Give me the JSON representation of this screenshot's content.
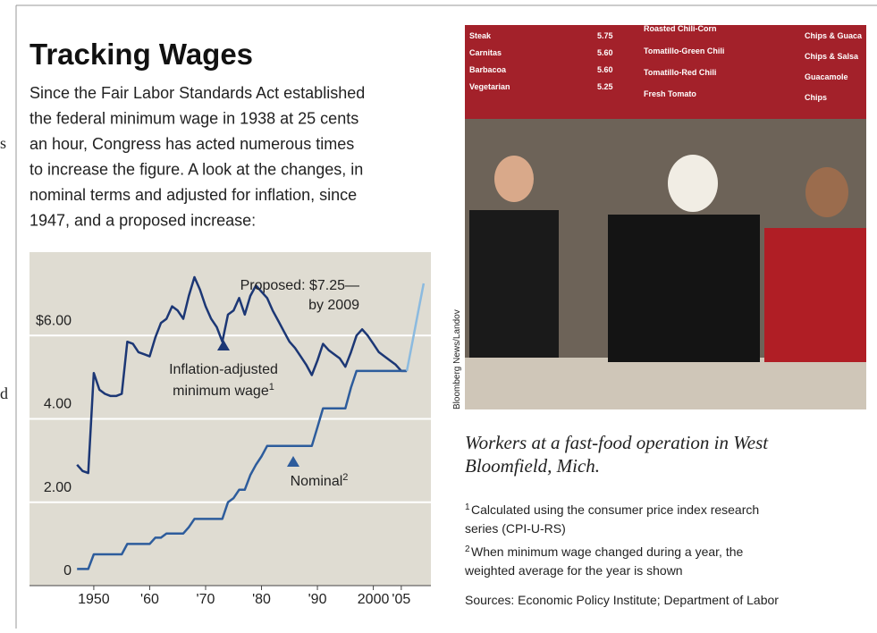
{
  "cropped_text": [
    "s",
    "d"
  ],
  "header": {
    "title": "Tracking Wages",
    "body": [
      "Since the Fair Labor Standards Act established",
      "the federal minimum wage in 1938 at 25 cents",
      "an hour, Congress has acted numerous times",
      "to increase the figure. A look at the changes, in",
      "nominal terms and adjusted for inflation, since",
      "1947, and a proposed increase:"
    ]
  },
  "chart_data": {
    "type": "line",
    "x": [
      1947,
      1948,
      1949,
      1950,
      1951,
      1952,
      1953,
      1954,
      1955,
      1956,
      1957,
      1958,
      1959,
      1960,
      1961,
      1962,
      1963,
      1964,
      1965,
      1966,
      1967,
      1968,
      1969,
      1970,
      1971,
      1972,
      1973,
      1974,
      1975,
      1976,
      1977,
      1978,
      1979,
      1980,
      1981,
      1982,
      1983,
      1984,
      1985,
      1986,
      1987,
      1988,
      1989,
      1990,
      1991,
      1992,
      1993,
      1994,
      1995,
      1996,
      1997,
      1998,
      1999,
      2000,
      2001,
      2002,
      2003,
      2004,
      2005,
      2006,
      2007,
      2008,
      2009
    ],
    "series": [
      {
        "color": "#1c3775",
        "values": [
          2.9,
          2.75,
          2.7,
          5.1,
          4.7,
          4.6,
          4.55,
          4.55,
          4.6,
          5.85,
          5.8,
          5.6,
          5.55,
          5.5,
          5.95,
          6.3,
          6.4,
          6.7,
          6.6,
          6.4,
          6.95,
          7.4,
          7.1,
          6.7,
          6.4,
          6.2,
          5.85,
          6.5,
          6.6,
          6.9,
          6.5,
          6.95,
          7.2,
          7.05,
          6.9,
          6.6,
          6.35,
          6.1,
          5.85,
          5.7,
          5.5,
          5.3,
          5.05,
          5.4,
          5.8,
          5.65,
          5.55,
          5.45,
          5.25,
          5.6,
          6.0,
          6.15,
          6.0,
          5.8,
          5.6,
          5.5,
          5.4,
          5.3,
          5.15,
          5.15,
          null,
          null,
          null
        ]
      },
      {
        "color": "#2d5c9c",
        "values": [
          0.4,
          0.4,
          0.4,
          0.75,
          0.75,
          0.75,
          0.75,
          0.75,
          0.75,
          1,
          1,
          1,
          1,
          1,
          1.15,
          1.15,
          1.25,
          1.25,
          1.25,
          1.25,
          1.4,
          1.6,
          1.6,
          1.6,
          1.6,
          1.6,
          1.6,
          2,
          2.1,
          2.3,
          2.3,
          2.65,
          2.9,
          3.1,
          3.35,
          3.35,
          3.35,
          3.35,
          3.35,
          3.35,
          3.35,
          3.35,
          3.35,
          3.8,
          4.25,
          4.25,
          4.25,
          4.25,
          4.25,
          4.75,
          5.15,
          5.15,
          5.15,
          5.15,
          5.15,
          5.15,
          5.15,
          5.15,
          5.15,
          5.15,
          null,
          null,
          null
        ]
      },
      {
        "color": "#8bbadf",
        "values": [
          null,
          null,
          null,
          null,
          null,
          null,
          null,
          null,
          null,
          null,
          null,
          null,
          null,
          null,
          null,
          null,
          null,
          null,
          null,
          null,
          null,
          null,
          null,
          null,
          null,
          null,
          null,
          null,
          null,
          null,
          null,
          null,
          null,
          null,
          null,
          null,
          null,
          null,
          null,
          null,
          null,
          null,
          null,
          null,
          null,
          null,
          null,
          null,
          null,
          null,
          null,
          null,
          null,
          null,
          null,
          null,
          null,
          null,
          null,
          5.15,
          5.85,
          6.55,
          7.25
        ]
      }
    ],
    "xlim": [
      1938.5,
      2010.3
    ],
    "ylim": [
      0,
      8
    ],
    "xticks": [
      {
        "value": 1950,
        "label": "1950"
      },
      {
        "value": 1960,
        "label": "'60"
      },
      {
        "value": 1970,
        "label": "'70"
      },
      {
        "value": 1980,
        "label": "'80"
      },
      {
        "value": 1990,
        "label": "'90"
      },
      {
        "value": 2000,
        "label": "2000"
      },
      {
        "value": 2005,
        "label": "'05"
      }
    ],
    "yticks": [
      0,
      {
        "value": 2,
        "label": "2.00"
      },
      {
        "value": 4,
        "label": "4.00"
      },
      {
        "value": 6,
        "label": "$6.00"
      }
    ],
    "grid": true,
    "background": "#dfdcd2",
    "annotations": [
      {
        "text": "Proposed: $7.25—"
      },
      {
        "text": "by 2009"
      },
      {
        "text": "Inflation-adjusted"
      },
      {
        "text": "minimum wage",
        "sup": "1"
      },
      {
        "text": "Nominal",
        "sup": "2"
      }
    ]
  },
  "photo": {
    "credit": "Bloomberg News/Landov",
    "menu": [
      "Steak",
      "5.75",
      "Carnitas",
      "5.60",
      "Barbacoa",
      "5.60",
      "Vegetarian",
      "5.25",
      "Roasted Chili-Corn",
      "Tomatillo-Green Chili",
      "Tomatillo-Red Chili",
      "Fresh Tomato",
      "Chips & Guaca",
      "Chips & Salsa",
      "Guacamole",
      "Chips"
    ]
  },
  "caption": [
    "Workers at a fast-food operation in West",
    "Bloomfield, Mich."
  ],
  "footnotes": [
    {
      "marker": "1",
      "lines": [
        "Calculated using the consumer price index research",
        "series (CPI-U-RS)"
      ]
    },
    {
      "marker": "2",
      "lines": [
        "When minimum wage changed during a year, the",
        "weighted average for the year is shown"
      ]
    }
  ],
  "sources": "Sources: Economic Policy Institute; Department of Labor"
}
